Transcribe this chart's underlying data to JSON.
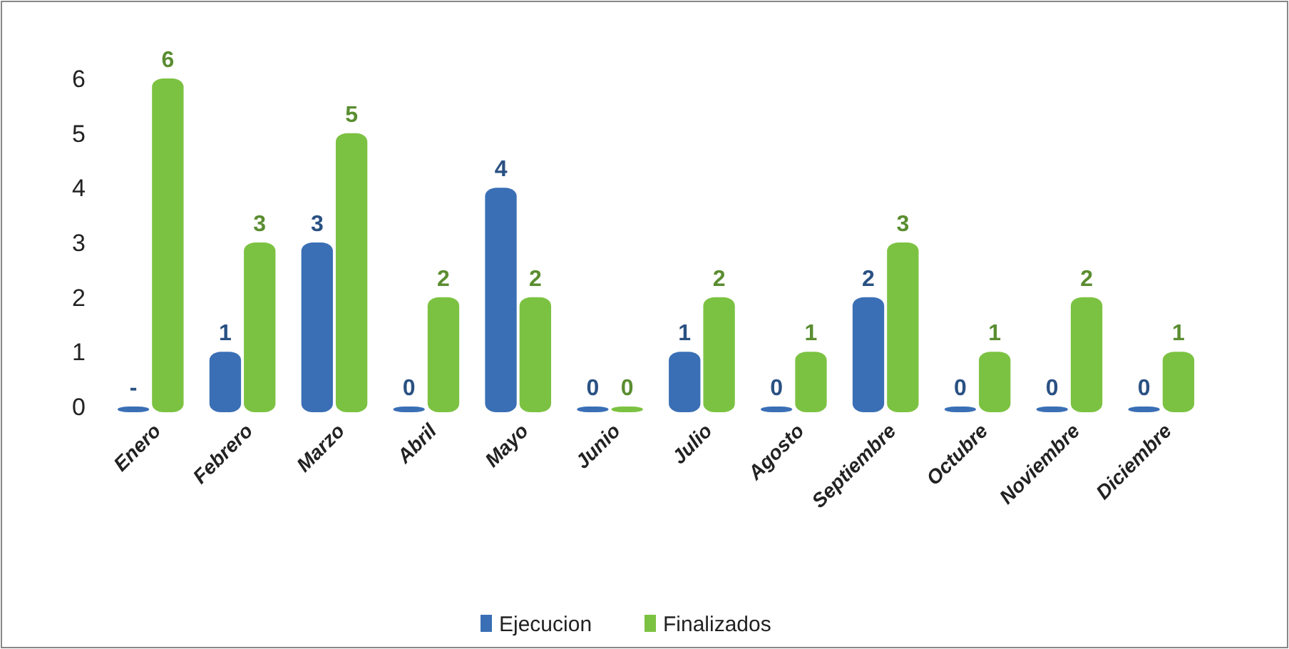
{
  "chart_data": {
    "type": "bar",
    "categories": [
      "Enero",
      "Febrero",
      "Marzo",
      "Abril",
      "Mayo",
      "Junio",
      "Julio",
      "Agosto",
      "Septiembre",
      "Octubre",
      "Noviembre",
      "Diciembre"
    ],
    "series": [
      {
        "name": "Ejecucion",
        "color": "#3a6fb5",
        "values": [
          0,
          1,
          3,
          0,
          4,
          0,
          1,
          0,
          2,
          0,
          0,
          0
        ],
        "value_labels": [
          "-",
          "1",
          "3",
          "0",
          "4",
          "0",
          "1",
          "0",
          "2",
          "0",
          "0",
          "0"
        ]
      },
      {
        "name": "Finalizados",
        "color": "#7cc242",
        "values": [
          6,
          3,
          5,
          2,
          2,
          0,
          2,
          1,
          3,
          1,
          2,
          1
        ],
        "value_labels": [
          "6",
          "3",
          "5",
          "2",
          "2",
          "0",
          "2",
          "1",
          "3",
          "1",
          "2",
          "1"
        ]
      }
    ],
    "ylim": [
      0,
      6
    ],
    "yticks": [
      0,
      1,
      2,
      3,
      4,
      5,
      6
    ],
    "grid": false,
    "legend": "bottom"
  }
}
